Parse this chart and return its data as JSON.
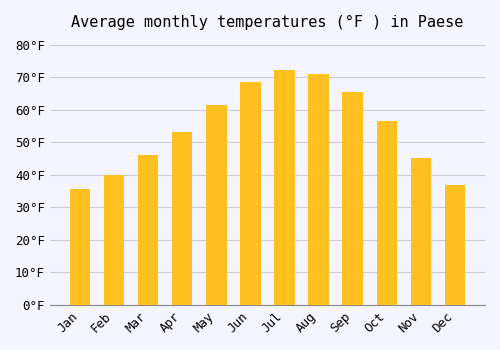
{
  "title": "Average monthly temperatures (°F ) in Paese",
  "months": [
    "Jan",
    "Feb",
    "Mar",
    "Apr",
    "May",
    "Jun",
    "Jul",
    "Aug",
    "Sep",
    "Oct",
    "Nov",
    "Dec"
  ],
  "values": [
    35.6,
    39.9,
    46.0,
    53.2,
    61.5,
    68.5,
    72.3,
    71.1,
    65.5,
    56.5,
    45.3,
    37.0
  ],
  "bar_color_top": "#FFC020",
  "bar_color_bottom": "#FFD870",
  "background_color": "#f5f5ff",
  "grid_color": "#ccccdd",
  "ylim": [
    0,
    82
  ],
  "ytick_step": 10,
  "title_fontsize": 11,
  "tick_fontsize": 9,
  "font_family": "monospace"
}
